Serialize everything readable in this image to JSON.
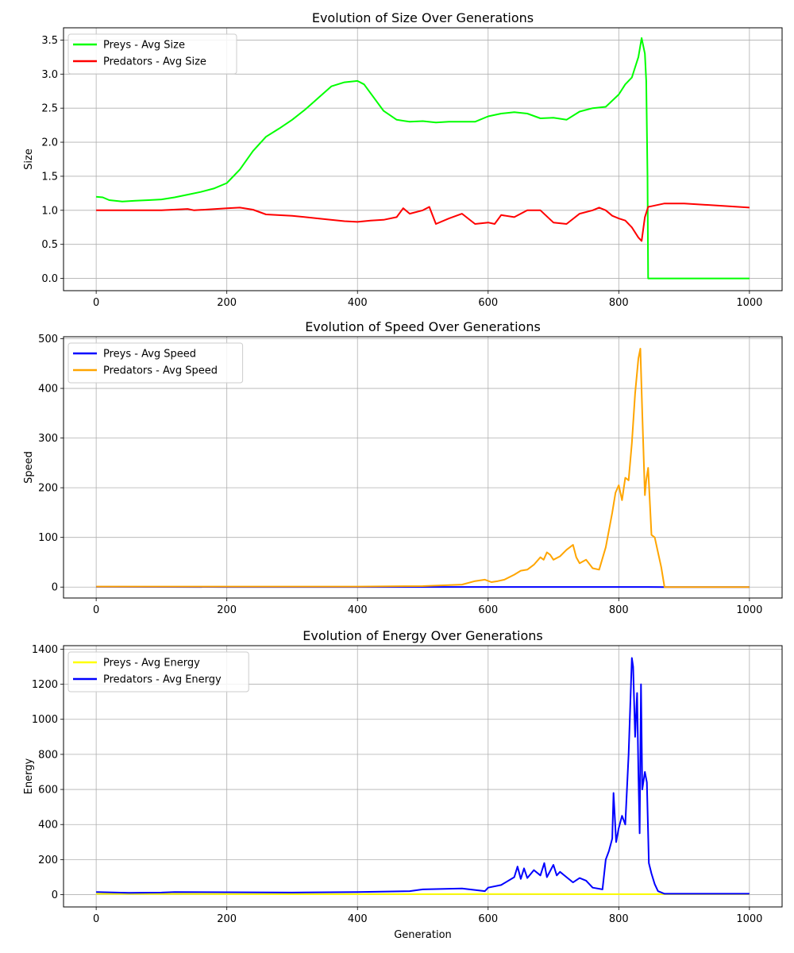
{
  "chart_data": [
    {
      "type": "line",
      "title": "Evolution of Size Over Generations",
      "xlabel": "",
      "ylabel": "Size",
      "xlim": [
        -50,
        1050
      ],
      "ylim": [
        -0.18,
        3.68
      ],
      "xticks": [
        0,
        200,
        400,
        600,
        800,
        1000
      ],
      "yticks": [
        0.0,
        0.5,
        1.0,
        1.5,
        2.0,
        2.5,
        3.0,
        3.5
      ],
      "ytick_labels": [
        "0.0",
        "0.5",
        "1.0",
        "1.5",
        "2.0",
        "2.5",
        "3.0",
        "3.5"
      ],
      "grid": true,
      "legend_loc": "upper left",
      "series": [
        {
          "name": "Preys - Avg Size",
          "color": "#00ff00",
          "x": [
            0,
            10,
            20,
            40,
            60,
            80,
            100,
            120,
            140,
            160,
            180,
            200,
            220,
            240,
            260,
            280,
            300,
            320,
            340,
            360,
            380,
            400,
            410,
            420,
            440,
            460,
            480,
            500,
            520,
            540,
            560,
            580,
            600,
            620,
            640,
            660,
            680,
            700,
            720,
            740,
            760,
            780,
            800,
            810,
            820,
            825,
            830,
            835,
            840,
            842,
            844,
            845,
            846,
            850,
            900,
            950,
            1000
          ],
          "y": [
            1.2,
            1.19,
            1.15,
            1.13,
            1.14,
            1.15,
            1.16,
            1.19,
            1.23,
            1.27,
            1.32,
            1.4,
            1.6,
            1.87,
            2.08,
            2.2,
            2.33,
            2.48,
            2.65,
            2.82,
            2.88,
            2.9,
            2.85,
            2.72,
            2.46,
            2.33,
            2.3,
            2.31,
            2.29,
            2.3,
            2.3,
            2.3,
            2.38,
            2.42,
            2.44,
            2.42,
            2.35,
            2.36,
            2.33,
            2.45,
            2.5,
            2.52,
            2.7,
            2.85,
            2.95,
            3.1,
            3.25,
            3.53,
            3.3,
            2.9,
            1.5,
            0.0,
            0.0,
            0.0,
            0.0,
            0.0,
            0.0
          ]
        },
        {
          "name": "Predators - Avg Size",
          "color": "#ff0000",
          "x": [
            0,
            50,
            100,
            140,
            150,
            200,
            220,
            240,
            260,
            300,
            340,
            380,
            400,
            420,
            440,
            460,
            470,
            480,
            500,
            510,
            520,
            540,
            560,
            580,
            600,
            610,
            620,
            640,
            660,
            680,
            700,
            720,
            740,
            760,
            770,
            780,
            790,
            800,
            810,
            820,
            830,
            835,
            840,
            845,
            850,
            870,
            900,
            950,
            1000
          ],
          "y": [
            1.0,
            1.0,
            1.0,
            1.02,
            1.0,
            1.03,
            1.04,
            1.01,
            0.94,
            0.92,
            0.88,
            0.84,
            0.83,
            0.85,
            0.86,
            0.9,
            1.03,
            0.95,
            1.0,
            1.05,
            0.8,
            0.88,
            0.95,
            0.8,
            0.82,
            0.8,
            0.93,
            0.9,
            1.0,
            1.0,
            0.82,
            0.8,
            0.95,
            1.0,
            1.04,
            1.0,
            0.92,
            0.88,
            0.85,
            0.75,
            0.6,
            0.55,
            0.9,
            1.05,
            1.06,
            1.1,
            1.1,
            1.07,
            1.04
          ]
        }
      ]
    },
    {
      "type": "line",
      "title": "Evolution of Speed Over Generations",
      "xlabel": "",
      "ylabel": "Speed",
      "xlim": [
        -50,
        1050
      ],
      "ylim": [
        -22,
        504
      ],
      "xticks": [
        0,
        200,
        400,
        600,
        800,
        1000
      ],
      "yticks": [
        0,
        100,
        200,
        300,
        400,
        500
      ],
      "ytick_labels": [
        "0",
        "100",
        "200",
        "300",
        "400",
        "500"
      ],
      "grid": true,
      "legend_loc": "upper left",
      "series": [
        {
          "name": "Preys - Avg Speed",
          "color": "#0000ff",
          "x": [
            0,
            200,
            400,
            600,
            800,
            845,
            870,
            1000
          ],
          "y": [
            0.5,
            0.3,
            0.2,
            0.2,
            0.2,
            0.2,
            0,
            0
          ]
        },
        {
          "name": "Predators - Avg Speed",
          "color": "#ffa500",
          "x": [
            0,
            200,
            400,
            500,
            560,
            580,
            595,
            605,
            615,
            625,
            640,
            650,
            660,
            670,
            680,
            685,
            690,
            695,
            700,
            710,
            720,
            730,
            735,
            740,
            750,
            760,
            770,
            780,
            790,
            795,
            800,
            805,
            810,
            815,
            820,
            825,
            830,
            833,
            836,
            840,
            842,
            845,
            850,
            855,
            860,
            865,
            870,
            900,
            1000
          ],
          "y": [
            1,
            1,
            1,
            2,
            5,
            12,
            15,
            10,
            12,
            15,
            25,
            33,
            35,
            45,
            60,
            55,
            70,
            65,
            55,
            62,
            75,
            85,
            60,
            48,
            55,
            38,
            35,
            80,
            150,
            190,
            205,
            175,
            220,
            215,
            290,
            390,
            460,
            480,
            350,
            185,
            215,
            240,
            105,
            100,
            70,
            40,
            0,
            0,
            0
          ]
        }
      ]
    },
    {
      "type": "line",
      "title": "Evolution of Energy Over Generations",
      "xlabel": "Generation",
      "ylabel": "Energy",
      "xlim": [
        -50,
        1050
      ],
      "ylim": [
        -70,
        1420
      ],
      "xticks": [
        0,
        200,
        400,
        600,
        800,
        1000
      ],
      "yticks": [
        0,
        200,
        400,
        600,
        800,
        1000,
        1200,
        1400
      ],
      "ytick_labels": [
        "0",
        "200",
        "400",
        "600",
        "800",
        "1000",
        "1200",
        "1400"
      ],
      "grid": true,
      "legend_loc": "upper left",
      "series": [
        {
          "name": "Preys - Avg Energy",
          "color": "#ffff00",
          "x": [
            0,
            200,
            400,
            600,
            800,
            845,
            870,
            1000
          ],
          "y": [
            5,
            4,
            3,
            4,
            3,
            3,
            3,
            3
          ]
        },
        {
          "name": "Predators - Avg Energy",
          "color": "#0000ff",
          "x": [
            0,
            50,
            100,
            120,
            200,
            300,
            400,
            480,
            500,
            560,
            595,
            600,
            620,
            640,
            645,
            650,
            655,
            660,
            670,
            680,
            686,
            690,
            700,
            705,
            710,
            720,
            730,
            740,
            750,
            760,
            775,
            780,
            785,
            790,
            792,
            796,
            800,
            805,
            810,
            815,
            820,
            822,
            825,
            828,
            830,
            832,
            834,
            836,
            840,
            843,
            846,
            850,
            855,
            860,
            870,
            900,
            1000
          ],
          "y": [
            15,
            10,
            12,
            15,
            14,
            12,
            15,
            20,
            30,
            35,
            20,
            40,
            55,
            100,
            160,
            90,
            150,
            95,
            140,
            110,
            180,
            100,
            170,
            110,
            130,
            100,
            70,
            95,
            80,
            40,
            30,
            200,
            250,
            320,
            580,
            300,
            380,
            450,
            400,
            800,
            1350,
            1300,
            900,
            1150,
            700,
            350,
            1200,
            600,
            700,
            640,
            180,
            120,
            60,
            20,
            5,
            5,
            5
          ]
        }
      ]
    }
  ]
}
